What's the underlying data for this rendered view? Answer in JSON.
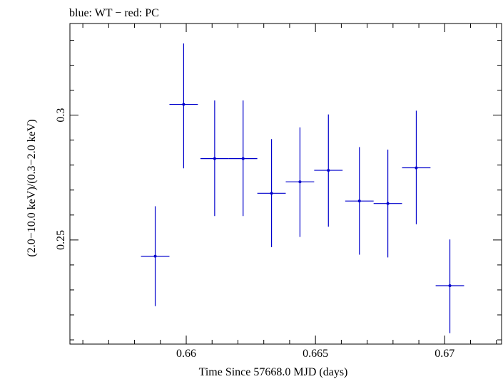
{
  "chart_data": {
    "type": "scatter",
    "title": "blue: WT − red: PC",
    "xlabel": "Time Since 57668.0 MJD (days)",
    "ylabel": "(2.0−10.0 keV)/(0.3−2.0 keV)",
    "xlim": [
      0.6555,
      0.6722
    ],
    "ylim": [
      0.2083,
      0.3367
    ],
    "x_ticks": [
      0.66,
      0.665,
      0.67
    ],
    "x_tick_labels": [
      "0.66",
      "0.665",
      "0.67"
    ],
    "y_ticks": [
      0.25,
      0.3
    ],
    "y_tick_labels": [
      "0.25",
      "0.3"
    ],
    "grid": false,
    "series": [
      {
        "name": "WT",
        "color": "#0000cc",
        "points": [
          {
            "x": 0.6588,
            "y": 0.2435,
            "xerr": 0.00055,
            "ylo": 0.2235,
            "yhi": 0.2635
          },
          {
            "x": 0.6599,
            "y": 0.3043,
            "xerr": 0.00055,
            "ylo": 0.2787,
            "yhi": 0.3287
          },
          {
            "x": 0.6611,
            "y": 0.2826,
            "xerr": 0.00055,
            "ylo": 0.2596,
            "yhi": 0.3059
          },
          {
            "x": 0.6622,
            "y": 0.2826,
            "xerr": 0.00055,
            "ylo": 0.2596,
            "yhi": 0.3059
          },
          {
            "x": 0.6633,
            "y": 0.2687,
            "xerr": 0.00055,
            "ylo": 0.2471,
            "yhi": 0.2904
          },
          {
            "x": 0.6644,
            "y": 0.2733,
            "xerr": 0.00055,
            "ylo": 0.2512,
            "yhi": 0.2951
          },
          {
            "x": 0.6655,
            "y": 0.2779,
            "xerr": 0.00055,
            "ylo": 0.2553,
            "yhi": 0.3003
          },
          {
            "x": 0.6667,
            "y": 0.2656,
            "xerr": 0.00055,
            "ylo": 0.2441,
            "yhi": 0.2872
          },
          {
            "x": 0.6678,
            "y": 0.2646,
            "xerr": 0.00055,
            "ylo": 0.243,
            "yhi": 0.2862
          },
          {
            "x": 0.6689,
            "y": 0.2789,
            "xerr": 0.00055,
            "ylo": 0.2563,
            "yhi": 0.3018
          },
          {
            "x": 0.6702,
            "y": 0.2317,
            "xerr": 0.00055,
            "ylo": 0.2127,
            "yhi": 0.2502
          }
        ]
      }
    ]
  }
}
